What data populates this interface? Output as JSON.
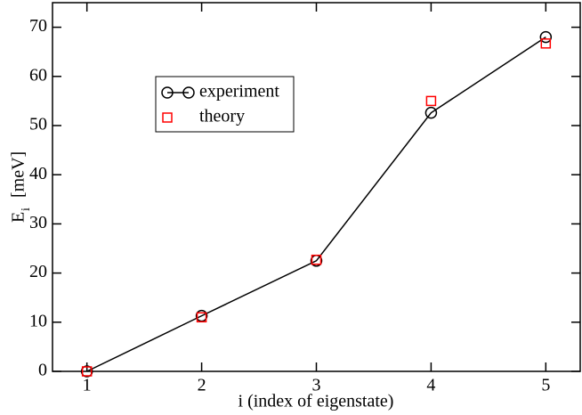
{
  "chart_data": {
    "type": "line",
    "xlabel": "i  (index of eigenstate)",
    "ylabel": {
      "main": "E",
      "sub": "i",
      "unit": "[meV]"
    },
    "x": [
      1,
      2,
      3,
      4,
      5
    ],
    "series": [
      {
        "name": "experiment",
        "color": "#000000",
        "marker": "circle",
        "line": true,
        "values": [
          0,
          11.3,
          22.5,
          52.6,
          68
        ]
      },
      {
        "name": "theory",
        "color": "#ff0000",
        "marker": "square",
        "line": false,
        "values": [
          0,
          11,
          22.7,
          55,
          66.7
        ]
      }
    ],
    "xlim": [
      0.7,
      5.3
    ],
    "ylim": [
      0,
      75
    ],
    "xticks": [
      1,
      2,
      3,
      4,
      5
    ],
    "yticks": [
      0,
      10,
      20,
      30,
      40,
      50,
      60,
      70
    ],
    "grid": false
  }
}
